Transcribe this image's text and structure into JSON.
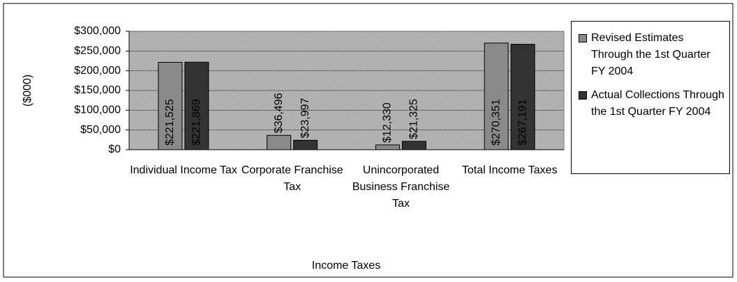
{
  "chart_data": {
    "type": "bar",
    "categories": [
      "Individual Income Tax",
      "Corporate Franchise Tax",
      "Unincorporated Business Franchise Tax",
      "Total Income Taxes"
    ],
    "series": [
      {
        "name": "Revised Estimates Through the 1st Quarter FY 2004",
        "color": "#8a8a8a",
        "values": [
          221525,
          36496,
          12330,
          270351
        ],
        "value_labels": [
          "$221,525",
          "$36,496",
          "$12,330",
          "$270,351"
        ]
      },
      {
        "name": "Actual Collections Through the 1st Quarter FY 2004",
        "color": "#333333",
        "values": [
          221869,
          23997,
          21325,
          267191
        ],
        "value_labels": [
          "$221,869",
          "$23,997",
          "$21,325",
          "$267,191"
        ]
      }
    ],
    "ylabel": "($000)",
    "xlabel": "Income Taxes",
    "ylim": [
      0,
      300000
    ],
    "yticks": [
      {
        "value": 0,
        "label": "$0"
      },
      {
        "value": 50000,
        "label": "$50,000"
      },
      {
        "value": 100000,
        "label": "$100,000"
      },
      {
        "value": 150000,
        "label": "$150,000"
      },
      {
        "value": 200000,
        "label": "$200,000"
      },
      {
        "value": 250000,
        "label": "$250,000"
      },
      {
        "value": 300000,
        "label": "$300,000"
      }
    ],
    "grid": true,
    "legend": "right"
  }
}
